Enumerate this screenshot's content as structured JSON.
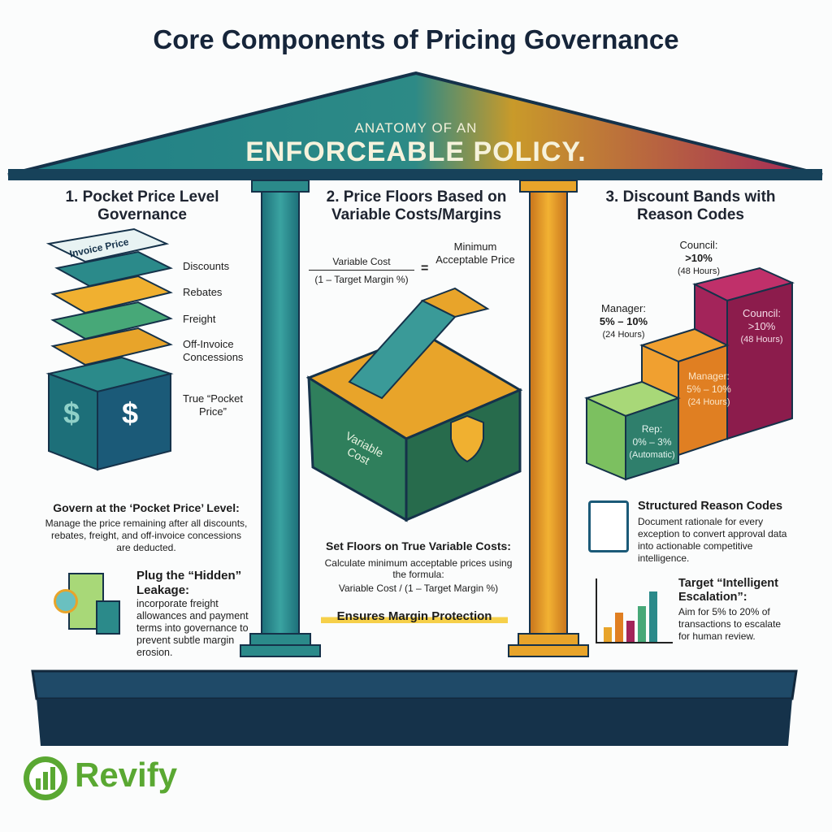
{
  "title": "Core Components of Pricing Governance",
  "roof": {
    "subtitle": "ANATOMY OF AN",
    "headline": "ENFORCEABLE POLICY."
  },
  "sections": [
    {
      "heading": "1. Pocket Price Level Governance",
      "stack_top": "Invoice Price",
      "layers": [
        "Discounts",
        "Rebates",
        "Freight",
        "Off-Invoice Concessions"
      ],
      "result": "True “Pocket Price”",
      "block_symbol": "$",
      "point1_title": "Govern at the ‘Pocket Price’ Level:",
      "point1_text": "Manage the price remaining after all discounts, rebates, freight, and off-invoice concessions are deducted.",
      "point2_title": "Plug the “Hidden” Leakage:",
      "point2_text": "incorporate freight allowances and payment terms into governance to prevent subtle margin erosion."
    },
    {
      "heading": "2. Price Floors Based on Variable Costs/Margins",
      "formula_numerator": "Variable Cost",
      "formula_denominator": "(1 – Target Margin %)",
      "formula_equals": "=",
      "formula_result": "Minimum Acceptable Price",
      "box_label": "Variable Cost",
      "point_title": "Set Floors on True Variable Costs:",
      "point_text": "Calculate minimum acceptable prices using the formula:",
      "point_formula": "Variable Cost / (1 – Target Margin %)",
      "highlight": "Ensures Margin Protection"
    },
    {
      "heading": "3. Discount Bands with Reason Codes",
      "tiers": [
        {
          "role": "Rep:",
          "range": "0% – 3%",
          "time": "(Automatic)",
          "color": "#2f7f6c"
        },
        {
          "role": "Manager:",
          "range": "5% – 10%",
          "time": "(24 Hours)",
          "color": "#e07f22"
        },
        {
          "role": "Council:",
          "range": ">10%",
          "time": "(48 Hours)",
          "color": "#8c1c4c"
        }
      ],
      "point1_title": "Structured Reason Codes",
      "point1_text": "Document rationale for every exception to convert approval data into actionable competitive intelligence.",
      "point2_title": "Target “Intelligent Escalation”:",
      "point2_text": "Aim for 5% to 20% of transactions to escalate for human review."
    }
  ],
  "logo": {
    "name": "Revify",
    "color": "#5aa832"
  },
  "colors": {
    "navy": "#16324a",
    "teal": "#2b8a8a",
    "gold": "#e8a42a",
    "magenta": "#a3245a"
  }
}
